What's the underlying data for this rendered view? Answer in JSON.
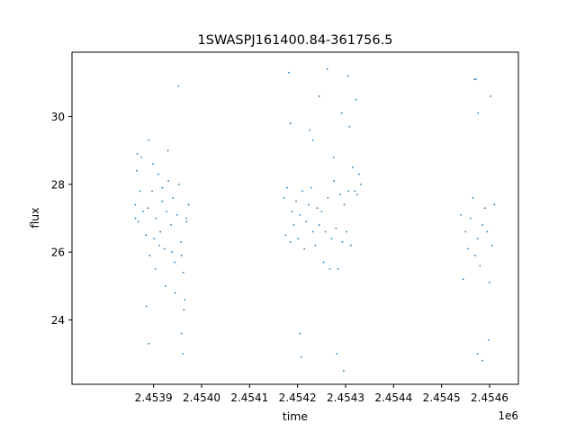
{
  "chart_data": {
    "type": "scatter",
    "title": "1SWASPJ161400.84-361756.5",
    "xlabel": "time",
    "ylabel": "flux",
    "x_offset_label": "1e6",
    "x_scale_factor": 1000000,
    "xlim": [
      2.45373,
      2.45466
    ],
    "ylim": [
      22.1,
      31.9
    ],
    "xticks": [
      {
        "value": 2.4539,
        "label": "2.4539"
      },
      {
        "value": 2.454,
        "label": "2.4540"
      },
      {
        "value": 2.4541,
        "label": "2.4541"
      },
      {
        "value": 2.4542,
        "label": "2.4542"
      },
      {
        "value": 2.4543,
        "label": "2.4543"
      },
      {
        "value": 2.4544,
        "label": "2.4544"
      },
      {
        "value": 2.4545,
        "label": "2.4545"
      },
      {
        "value": 2.4546,
        "label": "2.4546"
      }
    ],
    "yticks": [
      {
        "value": 24,
        "label": "24"
      },
      {
        "value": 26,
        "label": "26"
      },
      {
        "value": 28,
        "label": "28"
      },
      {
        "value": 30,
        "label": "30"
      }
    ],
    "grid": false,
    "legend": "none",
    "marker_color": "#1f77b4",
    "series": [
      {
        "x": [
          2.453862,
          2.453865,
          2.453868,
          2.453872,
          2.453875,
          2.453878,
          2.453884,
          2.453888,
          2.453892,
          2.453897,
          2.453901,
          2.453905,
          2.45391,
          2.453914,
          2.453918,
          2.453923,
          2.453927,
          2.453931,
          2.453936,
          2.45394,
          2.453944,
          2.453949,
          2.453953,
          2.453957,
          2.453962,
          2.453965,
          2.453969,
          2.453973,
          2.453862,
          2.453866,
          2.453885,
          2.45389,
          2.453899,
          2.453904,
          2.453912,
          2.453918,
          2.453925,
          2.45393,
          2.453938,
          2.453945,
          2.453952,
          2.453958,
          2.453963,
          2.453968,
          2.45389,
          2.453958,
          2.453961
        ],
        "y": [
          27.4,
          28.4,
          26.9,
          27.8,
          28.8,
          27.2,
          26.5,
          27.3,
          25.9,
          27.8,
          26.4,
          27.0,
          28.3,
          26.6,
          27.5,
          26.1,
          27.2,
          28.1,
          26.8,
          27.6,
          25.7,
          27.1,
          28.0,
          26.3,
          25.4,
          24.6,
          26.9,
          27.4,
          27.0,
          28.9,
          24.4,
          29.3,
          28.6,
          25.5,
          26.2,
          27.9,
          25.0,
          29.0,
          26.0,
          24.8,
          30.9,
          25.9,
          24.3,
          27.0,
          23.3,
          23.6,
          23.0
        ]
      },
      {
        "x": [
          2.454172,
          2.454175,
          2.454178,
          2.454185,
          2.454188,
          2.454192,
          2.454197,
          2.454201,
          2.454205,
          2.45421,
          2.454214,
          2.454218,
          2.454223,
          2.454228,
          2.454232,
          2.454237,
          2.454241,
          2.454245,
          2.45425,
          2.454254,
          2.454258,
          2.454263,
          2.454267,
          2.454271,
          2.454276,
          2.45428,
          2.454284,
          2.454289,
          2.454293,
          2.454297,
          2.454302,
          2.454306,
          2.454311,
          2.454315,
          2.454319,
          2.454324,
          2.454328,
          2.454332,
          2.454182,
          2.454185,
          2.454205,
          2.454225,
          2.454232,
          2.454245,
          2.454262,
          2.454275,
          2.454292,
          2.454308,
          2.454322,
          2.454305,
          2.454208,
          2.454282,
          2.454296
        ],
        "y": [
          27.6,
          26.5,
          27.9,
          26.3,
          27.2,
          26.8,
          27.5,
          26.4,
          27.1,
          27.8,
          26.1,
          26.9,
          27.4,
          27.9,
          26.6,
          26.2,
          27.3,
          26.8,
          27.2,
          25.7,
          26.6,
          27.6,
          25.5,
          26.4,
          28.1,
          26.7,
          25.5,
          27.7,
          26.3,
          27.4,
          26.6,
          27.8,
          26.2,
          28.5,
          27.8,
          27.7,
          28.3,
          28.0,
          31.3,
          29.8,
          23.6,
          29.6,
          29.3,
          30.6,
          31.4,
          28.8,
          30.1,
          29.7,
          30.5,
          31.2,
          22.9,
          23.0,
          22.5
        ]
      },
      {
        "x": [
          2.45454,
          2.454545,
          2.45455,
          2.454555,
          2.45456,
          2.454565,
          2.45457,
          2.454575,
          2.45458,
          2.454585,
          2.45459,
          2.454595,
          2.4546,
          2.454605,
          2.45461,
          2.454568,
          2.454572,
          2.454576,
          2.454602,
          2.454575,
          2.454585,
          2.454598
        ],
        "y": [
          27.1,
          25.2,
          26.6,
          26.1,
          27.0,
          27.6,
          25.9,
          26.4,
          25.6,
          26.8,
          27.3,
          26.6,
          25.1,
          26.2,
          27.4,
          31.1,
          31.1,
          30.1,
          30.6,
          23.0,
          22.8,
          23.4
        ]
      }
    ]
  }
}
